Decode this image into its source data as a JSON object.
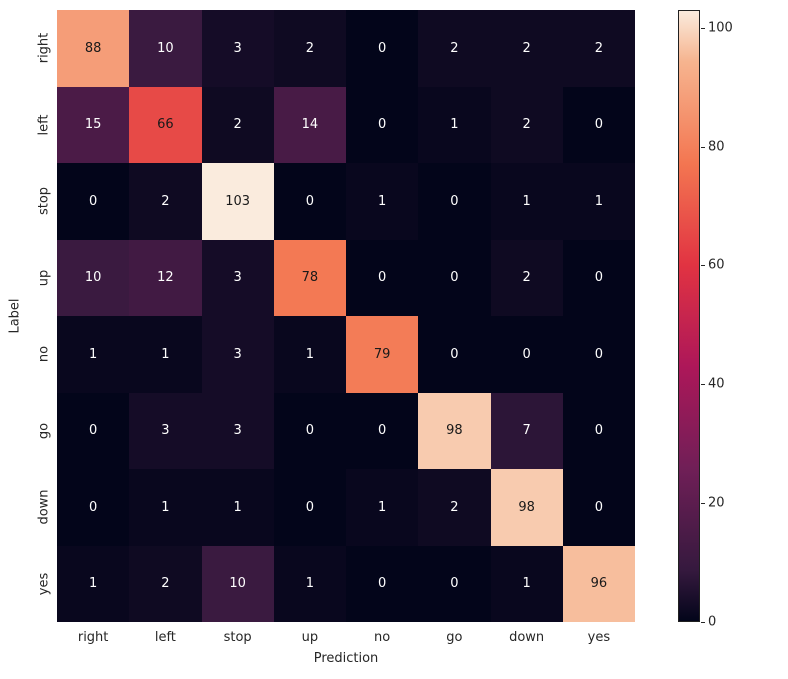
{
  "chart_data": {
    "type": "heatmap",
    "title": "",
    "xlabel": "Prediction",
    "ylabel": "Label",
    "categories_x": [
      "right",
      "left",
      "stop",
      "up",
      "no",
      "go",
      "down",
      "yes"
    ],
    "categories_y": [
      "right",
      "left",
      "stop",
      "up",
      "no",
      "go",
      "down",
      "yes"
    ],
    "matrix": [
      [
        88,
        10,
        3,
        2,
        0,
        2,
        2,
        2
      ],
      [
        15,
        66,
        2,
        14,
        0,
        1,
        2,
        0
      ],
      [
        0,
        2,
        103,
        0,
        1,
        0,
        1,
        1
      ],
      [
        10,
        12,
        3,
        78,
        0,
        0,
        2,
        0
      ],
      [
        1,
        1,
        3,
        1,
        79,
        0,
        0,
        0
      ],
      [
        0,
        3,
        3,
        0,
        0,
        98,
        7,
        0
      ],
      [
        0,
        1,
        1,
        0,
        1,
        2,
        98,
        0
      ],
      [
        1,
        2,
        10,
        1,
        0,
        0,
        1,
        96
      ]
    ],
    "vmin": 0,
    "vmax": 103,
    "colormap": {
      "name": "rocket",
      "anchors": [
        {
          "t": 0.0,
          "color": "#03051A"
        },
        {
          "t": 0.083,
          "color": "#35193E"
        },
        {
          "t": 0.25,
          "color": "#701F57"
        },
        {
          "t": 0.417,
          "color": "#AD1759"
        },
        {
          "t": 0.583,
          "color": "#E13342"
        },
        {
          "t": 0.75,
          "color": "#F37651"
        },
        {
          "t": 0.917,
          "color": "#F6B48F"
        },
        {
          "t": 1.0,
          "color": "#FAEBDD"
        }
      ]
    },
    "colorbar": {
      "ticks": [
        0,
        20,
        40,
        60,
        80,
        100
      ]
    },
    "annot_text_dark": "#1a1a1a",
    "annot_text_light": "#ffffff",
    "background": "#ffffff",
    "legend_position": "right-colorbar",
    "grid": false
  }
}
